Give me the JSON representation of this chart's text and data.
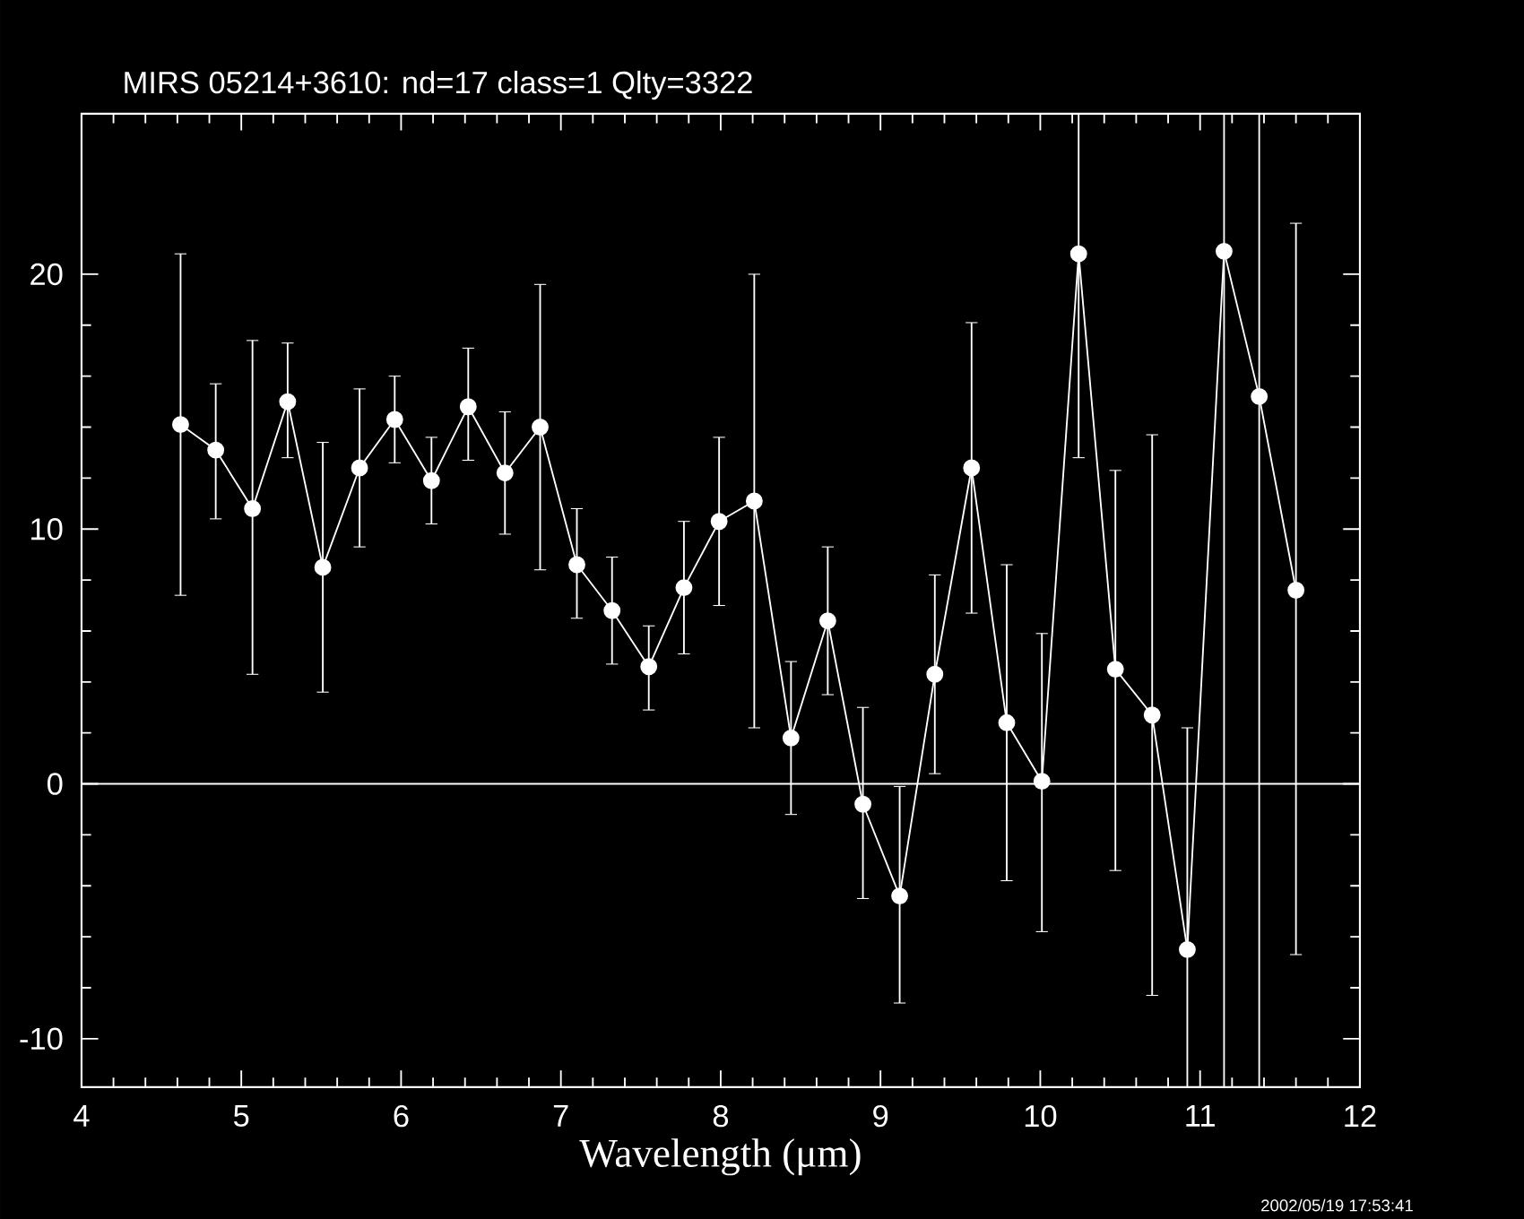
{
  "chart_data": {
    "type": "line",
    "title": "MIRS 05214+3610:    nd=17   class=1   Qlty=3322",
    "xlabel": "Wavelength (μm)",
    "x": [
      4.62,
      4.84,
      5.07,
      5.29,
      5.51,
      5.74,
      5.96,
      6.19,
      6.42,
      6.65,
      6.87,
      7.1,
      7.32,
      7.55,
      7.77,
      7.99,
      8.21,
      8.44,
      8.67,
      8.89,
      9.12,
      9.34,
      9.57,
      9.79,
      10.01,
      10.24,
      10.47,
      10.7,
      10.92,
      11.15,
      11.37,
      11.6
    ],
    "series": [
      {
        "color": "#ffffff",
        "values": [
          14.1,
          13.1,
          10.8,
          15.0,
          8.5,
          12.4,
          14.3,
          11.9,
          14.8,
          12.2,
          14.0,
          8.6,
          6.8,
          4.6,
          7.7,
          10.3,
          11.1,
          1.8,
          6.4,
          -0.8,
          -4.4,
          4.3,
          12.4,
          2.4,
          0.1,
          20.8,
          4.5,
          2.7,
          -6.5,
          20.9,
          15.2,
          7.6
        ],
        "errors": [
          [
            7.4,
            20.8
          ],
          [
            10.4,
            15.7
          ],
          [
            4.3,
            17.4
          ],
          [
            12.8,
            17.3
          ],
          [
            3.6,
            13.4
          ],
          [
            9.3,
            15.5
          ],
          [
            12.6,
            16.0
          ],
          [
            10.2,
            13.6
          ],
          [
            12.7,
            17.1
          ],
          [
            9.8,
            14.6
          ],
          [
            8.4,
            19.6
          ],
          [
            6.5,
            10.8
          ],
          [
            4.7,
            8.9
          ],
          [
            2.9,
            6.2
          ],
          [
            5.1,
            10.3
          ],
          [
            7.0,
            13.6
          ],
          [
            2.2,
            20.0
          ],
          [
            -1.2,
            4.8
          ],
          [
            3.5,
            9.3
          ],
          [
            -4.5,
            3.0
          ],
          [
            -8.6,
            -0.1
          ],
          [
            0.4,
            8.2
          ],
          [
            6.7,
            18.1
          ],
          [
            -3.8,
            8.6
          ],
          [
            -5.8,
            5.9
          ],
          [
            12.8,
            26.3
          ],
          [
            -3.4,
            12.3
          ],
          [
            -8.3,
            13.7
          ],
          [
            -11.9,
            2.2
          ],
          [
            -11.9,
            26.3
          ],
          [
            -11.9,
            26.3
          ],
          [
            -6.7,
            22.0
          ]
        ]
      }
    ],
    "xlim": [
      4,
      12
    ],
    "ylim": [
      -11.9,
      26.3
    ],
    "xticks": [
      4,
      5,
      6,
      7,
      8,
      9,
      10,
      11,
      12
    ],
    "yticks": [
      -10,
      0,
      10,
      20
    ],
    "ref_lines": [
      {
        "axis": "y",
        "value": 0,
        "color": "#ffffff"
      }
    ],
    "marker": "circle",
    "line_style": "solid",
    "grid": false,
    "annotations": [
      "2002/05/19 17:53:41"
    ]
  }
}
